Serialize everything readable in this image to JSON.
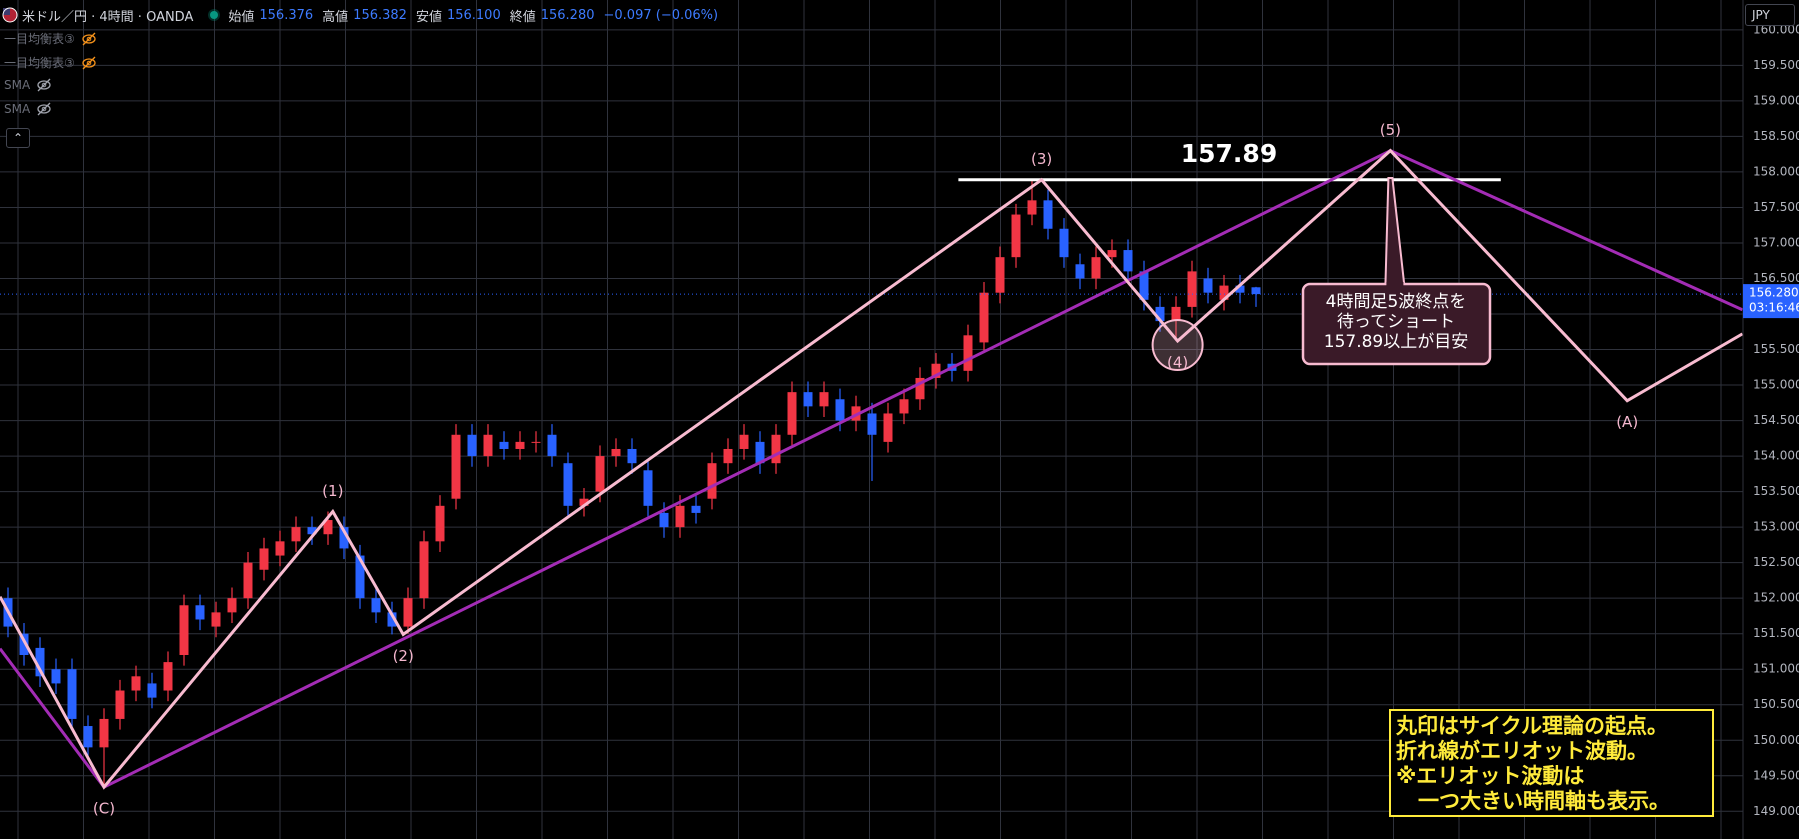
{
  "header": {
    "symbol": "米ドル／円 · 4時間 · OANDA",
    "open_label": "始値",
    "open": "156.376",
    "high_label": "高値",
    "high": "156.382",
    "low_label": "安値",
    "low": "156.100",
    "close_label": "終値",
    "close": "156.280",
    "change": "−0.097 (−0.06%)"
  },
  "indicators": [
    "一目均衡表③",
    "一目均衡表③",
    "SMA",
    "SMA"
  ],
  "currency": "JPY",
  "chart_data": {
    "type": "candlestick",
    "open": [
      152.0,
      151.5,
      151.3,
      151.0,
      151.0,
      150.2,
      149.9,
      150.3,
      150.7,
      150.8,
      150.7,
      151.2,
      151.9,
      151.6,
      151.8,
      152.0,
      152.4,
      152.6,
      152.8,
      153.0,
      152.9,
      153.0,
      152.6,
      152.0,
      151.8,
      151.6,
      152.0,
      152.8,
      153.4,
      154.3,
      154.0,
      154.2,
      154.1,
      154.2,
      154.3,
      153.9,
      153.3,
      153.5,
      154.0,
      154.1,
      153.8,
      153.2,
      153.0,
      153.3,
      153.4,
      153.9,
      154.1,
      154.2,
      153.9,
      154.3,
      154.9,
      154.7,
      154.8,
      154.5,
      154.6,
      154.2,
      154.6,
      154.8,
      155.1,
      155.3,
      155.2,
      155.6,
      156.3,
      156.8,
      157.4,
      157.6,
      157.2,
      156.7,
      156.5,
      156.8,
      156.9,
      156.6,
      156.1,
      155.9,
      156.1,
      156.5,
      156.2,
      156.4,
      156.376
    ],
    "high": [
      152.15,
      151.65,
      151.45,
      151.15,
      151.15,
      150.35,
      150.45,
      150.85,
      151.05,
      150.95,
      151.25,
      152.05,
      152.05,
      151.95,
      152.15,
      152.65,
      152.85,
      152.95,
      153.15,
      153.15,
      153.22,
      153.15,
      152.75,
      152.15,
      151.95,
      152.15,
      152.95,
      153.45,
      154.45,
      154.45,
      154.45,
      154.35,
      154.35,
      154.35,
      154.45,
      154.05,
      153.55,
      154.15,
      154.25,
      154.25,
      153.95,
      153.35,
      153.45,
      153.45,
      154.05,
      154.25,
      154.45,
      154.35,
      154.45,
      155.05,
      155.05,
      155.05,
      154.95,
      154.85,
      154.75,
      154.75,
      154.95,
      155.25,
      155.45,
      155.45,
      155.85,
      156.45,
      156.95,
      157.55,
      157.89,
      157.75,
      157.35,
      156.85,
      156.95,
      157.05,
      157.05,
      156.75,
      156.25,
      156.25,
      156.75,
      156.65,
      156.55,
      156.55,
      156.382
    ],
    "low": [
      151.45,
      151.05,
      150.75,
      150.65,
      150.15,
      149.75,
      149.35,
      150.15,
      150.55,
      150.45,
      150.55,
      151.05,
      151.55,
      151.45,
      151.65,
      151.85,
      152.25,
      152.45,
      152.65,
      152.75,
      152.75,
      152.55,
      151.85,
      151.65,
      151.49,
      151.5,
      151.85,
      152.65,
      153.25,
      153.85,
      153.85,
      153.95,
      153.95,
      154.05,
      153.85,
      153.15,
      153.15,
      153.35,
      153.85,
      153.75,
      153.15,
      152.85,
      152.85,
      153.05,
      153.25,
      153.75,
      153.95,
      153.75,
      153.75,
      154.15,
      154.55,
      154.55,
      154.35,
      154.35,
      153.65,
      154.05,
      154.45,
      154.65,
      154.95,
      155.05,
      155.05,
      155.45,
      156.15,
      156.65,
      157.25,
      157.05,
      156.65,
      156.35,
      156.35,
      156.65,
      156.45,
      156.05,
      155.75,
      155.62,
      155.95,
      156.15,
      156.05,
      156.15,
      156.1
    ],
    "close": [
      151.6,
      151.2,
      150.9,
      150.8,
      150.3,
      149.9,
      150.3,
      150.7,
      150.9,
      150.6,
      151.1,
      151.9,
      151.7,
      151.8,
      152.0,
      152.5,
      152.7,
      152.8,
      153.0,
      152.9,
      153.1,
      152.7,
      152.0,
      151.8,
      151.6,
      152.0,
      152.8,
      153.3,
      154.3,
      154.0,
      154.3,
      154.1,
      154.2,
      154.2,
      154.0,
      153.3,
      153.4,
      154.0,
      154.1,
      153.9,
      153.3,
      153.0,
      153.3,
      153.2,
      153.9,
      154.1,
      154.3,
      153.9,
      154.3,
      154.9,
      154.7,
      154.9,
      154.5,
      154.7,
      154.3,
      154.6,
      154.8,
      155.1,
      155.3,
      155.2,
      155.7,
      156.3,
      156.8,
      157.4,
      157.6,
      157.2,
      156.8,
      156.5,
      156.8,
      156.9,
      156.6,
      156.2,
      155.9,
      156.1,
      156.6,
      156.3,
      156.4,
      156.3,
      156.28
    ],
    "up_color": "#f23645",
    "down_color": "#2962ff",
    "ylim": [
      148.61,
      160.42
    ],
    "yticks": [
      {
        "value": 149,
        "label": "149.000"
      },
      {
        "value": 149.5,
        "label": "149.500"
      },
      {
        "value": 150,
        "label": "150.000"
      },
      {
        "value": 150.5,
        "label": "150.500"
      },
      {
        "value": 151,
        "label": "151.000"
      },
      {
        "value": 151.5,
        "label": "151.500"
      },
      {
        "value": 152,
        "label": "152.000"
      },
      {
        "value": 152.5,
        "label": "152.500"
      },
      {
        "value": 153,
        "label": "153.000"
      },
      {
        "value": 153.5,
        "label": "153.500"
      },
      {
        "value": 154,
        "label": "154.000"
      },
      {
        "value": 154.5,
        "label": "154.500"
      },
      {
        "value": 155,
        "label": "155.000"
      },
      {
        "value": 155.5,
        "label": "155.500"
      },
      {
        "value": 156,
        "label": "156.000"
      },
      {
        "value": 156.5,
        "label": "156.500"
      },
      {
        "value": 157,
        "label": "157.000"
      },
      {
        "value": 157.5,
        "label": "157.500"
      },
      {
        "value": 158,
        "label": "158.000"
      },
      {
        "value": 158.5,
        "label": "158.500"
      },
      {
        "value": 159,
        "label": "159.000"
      },
      {
        "value": 159.5,
        "label": "159.500"
      },
      {
        "value": 160,
        "label": "160.000"
      }
    ],
    "grid": true,
    "last_price": {
      "value": 156.28,
      "label": "156.280"
    },
    "countdown": "03:16:46",
    "waves": [
      {
        "color": "#f8bbd0",
        "x": [
          -0.5,
          6,
          20.3,
          24.7,
          64.6,
          73.1,
          86.4,
          101.2,
          108.4
        ],
        "values": [
          152.02,
          149.34,
          153.22,
          151.49,
          157.89,
          155.62,
          158.3,
          154.78,
          155.72
        ],
        "labels": [
          null,
          "(C)",
          "(1)",
          "(2)",
          "(3)",
          "(4)",
          "(5)",
          "(A)",
          null
        ]
      },
      {
        "color": "#a32cb5",
        "x": [
          -0.5,
          6,
          86.4,
          108.4
        ],
        "values": [
          151.29,
          149.34,
          158.3,
          156.06
        ]
      }
    ],
    "level": {
      "value": 157.89,
      "x": [
        59.4,
        93.3
      ]
    },
    "callout": [
      "4時間足5波終点を",
      "待ってショート",
      "157.89以上が目安"
    ],
    "note": [
      "丸印はサイクル理論の起点。",
      "折れ線がエリオット波動。",
      "※エリオット波動は",
      "一つ大きい時間軸も表示。"
    ]
  }
}
